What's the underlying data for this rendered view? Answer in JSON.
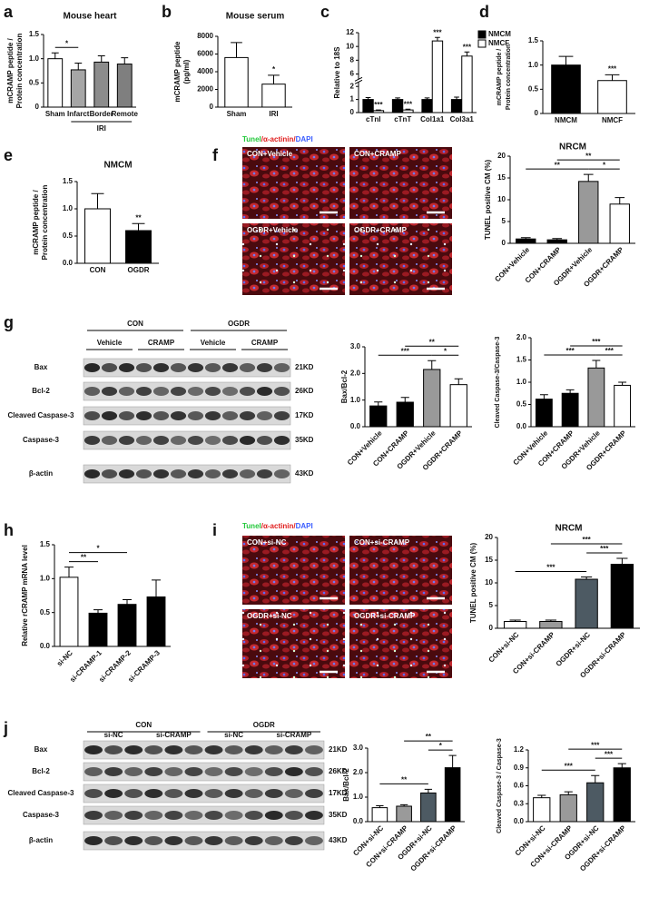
{
  "panel_labels": [
    "a",
    "b",
    "c",
    "d",
    "e",
    "f",
    "g",
    "h",
    "i",
    "j"
  ],
  "micrographs": [
    {
      "stain": [
        "Tunel",
        "/α-actinin/",
        "DAPI"
      ],
      "fields": [
        "CON+Vehicle",
        "CON+CRAMP",
        "OGDR+Vehicle",
        "OGDR+CRAMP"
      ]
    },
    {
      "stain": [
        "Tunel",
        "/α-actinin/",
        "DAPI"
      ],
      "fields": [
        "CON+si-NC",
        "CON+si-CRAMP",
        "OGDR+si-NC",
        "OGDR+si-CRAMP"
      ]
    }
  ],
  "blots": [
    {
      "groups": [
        "CON",
        "OGDR"
      ],
      "treatments": [
        "Vehicle",
        "CRAMP",
        "Vehicle",
        "CRAMP"
      ],
      "rows": [
        {
          "protein": "Bax",
          "size": "21KD"
        },
        {
          "protein": "Bcl-2",
          "size": "26KD"
        },
        {
          "protein": "Cleaved Caspase-3",
          "size": "17KD"
        },
        {
          "protein": "Caspase-3",
          "size": "35KD"
        },
        {
          "protein": "β-actin",
          "size": "43KD"
        }
      ]
    },
    {
      "groups": [
        "CON",
        "OGDR"
      ],
      "treatments": [
        "si-NC",
        "si-CRAMP",
        "si-NC",
        "si-CRAMP"
      ],
      "rows": [
        {
          "protein": "Bax",
          "size": "21KD"
        },
        {
          "protein": "Bcl-2",
          "size": "26KD"
        },
        {
          "protein": "Cleaved Caspase-3",
          "size": "17KD"
        },
        {
          "protein": "Caspase-3",
          "size": "35KD"
        },
        {
          "protein": "β-actin",
          "size": "43KD"
        }
      ]
    }
  ],
  "chart_data": [
    {
      "type": "bar",
      "title": "Mouse heart",
      "ylabel": [
        "mCRAMP peptide /",
        "Protein concentration"
      ],
      "categories": [
        "Sham",
        "Infarct",
        "Border",
        "Remote"
      ],
      "values": [
        1.0,
        0.77,
        0.93,
        0.89
      ],
      "errors": [
        0.12,
        0.14,
        0.13,
        0.13
      ],
      "colors": [
        "#ffffff",
        "#a6a6a6",
        "#8c8c8c",
        "#7f7f7f"
      ],
      "ylim": [
        0,
        1.5
      ],
      "yticks": [
        0,
        0.5,
        {
          "value": 1,
          "label": "1.0"
        },
        1.5
      ],
      "groups": [
        {
          "label": "IRI",
          "from": 1,
          "to": 3
        }
      ],
      "significance": [
        {
          "bars": [
            0,
            1
          ],
          "label": "*"
        }
      ]
    },
    {
      "type": "bar",
      "title": "Mouse serum",
      "ylabel": [
        "mCRAMP peptide",
        "(pg/ml)"
      ],
      "categories": [
        "Sham",
        "IRI"
      ],
      "values": [
        5600,
        2600
      ],
      "errors": [
        1700,
        1000
      ],
      "colors": [
        "#ffffff",
        "#ffffff"
      ],
      "ylim": [
        0,
        8000
      ],
      "yticks": [
        0,
        2000,
        4000,
        6000,
        8000
      ],
      "significance": [
        {
          "bars": [
            1
          ],
          "label": "*"
        }
      ]
    },
    {
      "type": "grouped_bar",
      "ylabel": [
        "Relative to 18S"
      ],
      "categories": [
        "cTnI",
        "cTnT",
        "Col1a1",
        "Col3a1"
      ],
      "series": [
        {
          "name": "NMCM",
          "color": "#000000",
          "values": [
            1.0,
            1.0,
            1.0,
            1.0
          ],
          "errors": [
            0.15,
            0.12,
            0.12,
            0.18
          ]
        },
        {
          "name": "NMCF",
          "color": "#ffffff",
          "values": [
            0.15,
            0.2,
            10.8,
            8.6
          ],
          "errors": [
            0.05,
            0.06,
            0.5,
            0.6
          ]
        }
      ],
      "ylim": [
        0,
        12
      ],
      "ybreak": [
        2.2,
        5.5
      ],
      "yticks": [
        0,
        1,
        2,
        6,
        8,
        10,
        12
      ],
      "legend": "upper right",
      "significance": [
        {
          "category": 0,
          "series": 1,
          "label": "***"
        },
        {
          "category": 1,
          "series": 1,
          "label": "***"
        },
        {
          "category": 2,
          "series": 1,
          "label": "***"
        },
        {
          "category": 3,
          "series": 1,
          "label": "***"
        }
      ]
    },
    {
      "type": "bar",
      "ylabel": [
        "mCRAMP peptide /",
        "Protein concentration"
      ],
      "categories": [
        "NMCM",
        "NMCF"
      ],
      "values": [
        1.0,
        0.68
      ],
      "errors": [
        0.18,
        0.12
      ],
      "colors": [
        "#000000",
        "#ffffff"
      ],
      "ylim": [
        0,
        1.5
      ],
      "yticks": [
        0,
        0.5,
        {
          "value": 1,
          "label": "1.0"
        },
        1.5
      ],
      "significance": [
        {
          "bars": [
            1
          ],
          "label": "***"
        }
      ]
    },
    {
      "type": "bar",
      "title": "NMCM",
      "ylabel": [
        "mCRAMP peptide /",
        "Protein concentration"
      ],
      "categories": [
        "CON",
        "OGDR"
      ],
      "values": [
        1.0,
        0.6
      ],
      "errors": [
        0.28,
        0.13
      ],
      "colors": [
        "#ffffff",
        "#000000"
      ],
      "ylim": [
        0,
        1.5
      ],
      "yticks": [
        {
          "value": 0,
          "label": "0.0"
        },
        0.5,
        {
          "value": 1,
          "label": "1.0"
        },
        1.5
      ],
      "significance": [
        {
          "bars": [
            1
          ],
          "label": "**"
        }
      ]
    },
    {
      "type": "bar",
      "title": "NRCM",
      "ylabel": [
        "TUNEL positive CM (%)"
      ],
      "categories": [
        "CON+Vehicle",
        "CON+CRAMP",
        "OGDR+Vehicle",
        "OGDR+CRAMP"
      ],
      "values": [
        1.0,
        0.8,
        14.2,
        9.0
      ],
      "errors": [
        0.3,
        0.3,
        1.6,
        1.5
      ],
      "colors": [
        "#000000",
        "#000000",
        "#999999",
        "#ffffff"
      ],
      "ylim": [
        0,
        20
      ],
      "yticks": [
        0,
        5,
        10,
        15,
        20
      ],
      "x_label_rotation": 45,
      "significance": [
        {
          "bars": [
            0,
            2
          ],
          "label": "**"
        },
        {
          "bars": [
            2,
            3
          ],
          "label": "*"
        },
        {
          "bars": [
            1,
            3
          ],
          "label": "**"
        }
      ]
    },
    {
      "type": "bar",
      "ylabel": [
        "Bax/Bcl-2"
      ],
      "categories": [
        "CON+Vehicle",
        "CON+CRAMP",
        "OGDR+Vehicle",
        "OGDR+CRAMP"
      ],
      "values": [
        0.78,
        0.92,
        2.15,
        1.58
      ],
      "errors": [
        0.15,
        0.18,
        0.33,
        0.22
      ],
      "colors": [
        "#000000",
        "#000000",
        "#999999",
        "#ffffff"
      ],
      "ylim": [
        0,
        3
      ],
      "yticks": [
        {
          "value": 0,
          "label": "0.0"
        },
        {
          "value": 1,
          "label": "1.0"
        },
        {
          "value": 2,
          "label": "2.0"
        },
        {
          "value": 3,
          "label": "3.0"
        }
      ],
      "x_label_rotation": 45,
      "significance": [
        {
          "bars": [
            0,
            2
          ],
          "label": "***"
        },
        {
          "bars": [
            2,
            3
          ],
          "label": "*"
        },
        {
          "bars": [
            1,
            3
          ],
          "label": "**"
        }
      ]
    },
    {
      "type": "bar",
      "ylabel": [
        "Cleaved Caspase-3/Caspase-3"
      ],
      "categories": [
        "CON+Vehicle",
        "CON+CRAMP",
        "OGDR+Vehicle",
        "OGDR+CRAMP"
      ],
      "values": [
        0.62,
        0.75,
        1.32,
        0.93
      ],
      "errors": [
        0.1,
        0.08,
        0.17,
        0.07
      ],
      "colors": [
        "#000000",
        "#000000",
        "#999999",
        "#ffffff"
      ],
      "ylim": [
        0,
        2
      ],
      "yticks": [
        {
          "value": 0,
          "label": "0.0"
        },
        0.5,
        {
          "value": 1,
          "label": "1.0"
        },
        1.5,
        {
          "value": 2,
          "label": "2.0"
        }
      ],
      "x_label_rotation": 45,
      "significance": [
        {
          "bars": [
            0,
            2
          ],
          "label": "***"
        },
        {
          "bars": [
            2,
            3
          ],
          "label": "***"
        },
        {
          "bars": [
            1,
            3
          ],
          "label": "***"
        }
      ]
    },
    {
      "type": "bar",
      "ylabel": [
        "Relative rCRAMP mRNA level"
      ],
      "categories": [
        "si-NC",
        "si-CRAMP-1",
        "si-CRAMP-2",
        "si-CRAMP-3"
      ],
      "values": [
        1.02,
        0.49,
        0.62,
        0.73
      ],
      "errors": [
        0.15,
        0.05,
        0.07,
        0.25
      ],
      "colors": [
        "#ffffff",
        "#000000",
        "#000000",
        "#000000"
      ],
      "ylim": [
        0,
        1.5
      ],
      "yticks": [
        {
          "value": 0,
          "label": "0.0"
        },
        0.5,
        {
          "value": 1,
          "label": "1.0"
        },
        1.5
      ],
      "x_label_rotation": 45,
      "significance": [
        {
          "bars": [
            0,
            1
          ],
          "label": "**"
        },
        {
          "bars": [
            0,
            2
          ],
          "label": "*"
        }
      ]
    },
    {
      "type": "bar",
      "title": "NRCM",
      "ylabel": [
        "TUNEL positive CM (%)"
      ],
      "categories": [
        "CON+si-NC",
        "CON+si-CRAMP",
        "OGDR+si-NC",
        "OGDR+si-CRAMP"
      ],
      "values": [
        1.5,
        1.5,
        10.8,
        14.1
      ],
      "errors": [
        0.3,
        0.3,
        0.5,
        1.3
      ],
      "colors": [
        "#ffffff",
        "#9a9a9a",
        "#4d5a63",
        "#000000"
      ],
      "ylim": [
        0,
        20
      ],
      "yticks": [
        0,
        5,
        10,
        15,
        20
      ],
      "x_label_rotation": 45,
      "significance": [
        {
          "bars": [
            0,
            2
          ],
          "label": "***"
        },
        {
          "bars": [
            2,
            3
          ],
          "label": "***"
        },
        {
          "bars": [
            1,
            3
          ],
          "label": "***"
        }
      ]
    },
    {
      "type": "bar",
      "ylabel": [
        "Bax/Bcl-2"
      ],
      "categories": [
        "CON+si-NC",
        "CON+si-CRAMP",
        "OGDR+si-NC",
        "OGDR+si-CRAMP"
      ],
      "values": [
        0.57,
        0.63,
        1.17,
        2.2
      ],
      "errors": [
        0.08,
        0.06,
        0.15,
        0.5
      ],
      "colors": [
        "#ffffff",
        "#9a9a9a",
        "#4d5a63",
        "#000000"
      ],
      "ylim": [
        0,
        3
      ],
      "yticks": [
        {
          "value": 0,
          "label": "0.0"
        },
        {
          "value": 1,
          "label": "1.0"
        },
        {
          "value": 2,
          "label": "2.0"
        },
        {
          "value": 3,
          "label": "3.0"
        }
      ],
      "x_label_rotation": 45,
      "significance": [
        {
          "bars": [
            0,
            2
          ],
          "label": "**"
        },
        {
          "bars": [
            2,
            3
          ],
          "label": "*"
        },
        {
          "bars": [
            1,
            3
          ],
          "label": "**"
        }
      ]
    },
    {
      "type": "bar",
      "ylabel": [
        "Cleaved Caspase-3 / Caspase-3"
      ],
      "categories": [
        "CON+si-NC",
        "CON+si-CRAMP",
        "OGDR+si-NC",
        "OGDR+si-CRAMP"
      ],
      "values": [
        0.4,
        0.45,
        0.65,
        0.9
      ],
      "errors": [
        0.04,
        0.05,
        0.12,
        0.07
      ],
      "colors": [
        "#ffffff",
        "#9a9a9a",
        "#4d5a63",
        "#000000"
      ],
      "ylim": [
        0,
        1.2
      ],
      "yticks": [
        {
          "value": 0,
          "label": "0.0"
        },
        0.3,
        0.6,
        0.9,
        1.2
      ],
      "x_label_rotation": 45,
      "significance": [
        {
          "bars": [
            0,
            2
          ],
          "label": "***"
        },
        {
          "bars": [
            2,
            3
          ],
          "label": "***"
        },
        {
          "bars": [
            1,
            3
          ],
          "label": "***"
        }
      ]
    }
  ]
}
